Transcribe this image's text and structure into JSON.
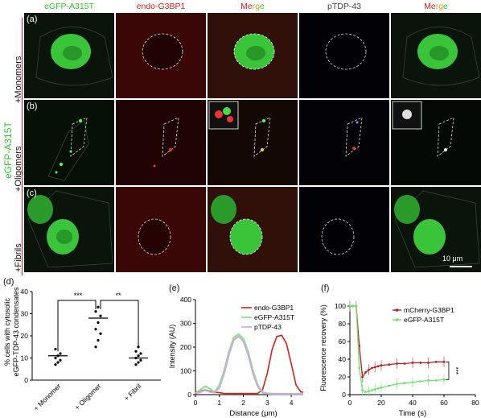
{
  "figure": {
    "column_headers": {
      "col1": "eGFP-A315T",
      "col2": "endo-G3BP1",
      "col3_a": "Me",
      "col3_b": "rg",
      "col3_c": "e",
      "col4": "pTDP-43",
      "col5_a": "Me",
      "col5_b": "rg",
      "col5_c": "e"
    },
    "side_label": "eGFP-A315T",
    "rows": [
      {
        "letter": "(a)",
        "label": "+Monomers"
      },
      {
        "letter": "(b)",
        "label": "+Oligomers"
      },
      {
        "letter": "(c)",
        "label": "+Fibrils"
      }
    ],
    "scale_bar": "10 μm",
    "colors": {
      "green": "#35c435",
      "red": "#d62020",
      "dark_red": "#2a0505",
      "dark_green": "#061206"
    }
  },
  "panel_d": {
    "letter": "(d)",
    "chart_data": {
      "type": "scatter",
      "categories": [
        "+ Monomer",
        "+ Oligomer",
        "+ Fibril"
      ],
      "ylabel_line1": "% cells with cytosolic",
      "ylabel_line2": "eGFP-TDP-43 condensates",
      "ylim": [
        0,
        40
      ],
      "yticks": [
        "0",
        "10",
        "20",
        "30",
        "40"
      ],
      "points": [
        {
          "cat": 0,
          "values": [
            7,
            8,
            9,
            10,
            11,
            12,
            14
          ]
        },
        {
          "cat": 1,
          "values": [
            15,
            18,
            21,
            23,
            26,
            29,
            31,
            33
          ]
        },
        {
          "cat": 2,
          "values": [
            7,
            8,
            9,
            10,
            11,
            12,
            13,
            15
          ]
        }
      ],
      "means": [
        11,
        28,
        10
      ],
      "significance": [
        "***",
        "**"
      ]
    }
  },
  "panel_e": {
    "letter": "(e)",
    "chart_data": {
      "type": "line",
      "xlabel": "Distance (μm)",
      "ylabel": "Intensity (AU)",
      "xlim": [
        0,
        4.5
      ],
      "ylim": [
        0,
        400
      ],
      "xticks": [
        "0",
        "1",
        "2",
        "3",
        "4"
      ],
      "yticks": [
        "0",
        "100",
        "200",
        "300",
        "400"
      ],
      "series": [
        {
          "name": "endo-G3BP1",
          "color": "#d62020",
          "x": [
            0,
            0.2,
            0.4,
            0.6,
            0.8,
            1.0,
            1.2,
            1.4,
            1.6,
            1.8,
            2.0,
            2.2,
            2.4,
            2.6,
            2.8,
            3.0,
            3.2,
            3.4,
            3.6,
            3.8,
            4.0,
            4.2,
            4.4,
            4.5
          ],
          "y": [
            10,
            15,
            20,
            15,
            10,
            8,
            5,
            5,
            5,
            5,
            5,
            5,
            5,
            5,
            20,
            90,
            190,
            245,
            250,
            215,
            130,
            40,
            12,
            10
          ]
        },
        {
          "name": "eGFP-A315T",
          "color": "#7ee07e",
          "x": [
            0,
            0.2,
            0.4,
            0.6,
            0.8,
            1.0,
            1.2,
            1.4,
            1.6,
            1.8,
            2.0,
            2.2,
            2.4,
            2.6,
            2.8,
            3.0,
            3.2,
            3.4,
            3.6,
            3.8,
            4.0,
            4.2,
            4.4,
            4.5
          ],
          "y": [
            5,
            20,
            35,
            25,
            10,
            40,
            100,
            180,
            240,
            255,
            235,
            180,
            100,
            40,
            10,
            5,
            3,
            3,
            3,
            3,
            3,
            3,
            3,
            3
          ]
        },
        {
          "name": "pTDP-43",
          "color": "#c8a8d8",
          "x": [
            0,
            0.2,
            0.4,
            0.6,
            0.8,
            1.0,
            1.2,
            1.4,
            1.6,
            1.8,
            2.0,
            2.2,
            2.4,
            2.6,
            2.8,
            3.0,
            3.2,
            3.4,
            3.6,
            3.8,
            4.0,
            4.2,
            4.4,
            4.5
          ],
          "y": [
            5,
            10,
            20,
            12,
            8,
            30,
            90,
            170,
            230,
            245,
            225,
            170,
            90,
            35,
            8,
            4,
            3,
            3,
            3,
            3,
            3,
            3,
            3,
            3
          ]
        }
      ]
    }
  },
  "panel_f": {
    "letter": "(f)",
    "chart_data": {
      "type": "line",
      "xlabel": "Time (s)",
      "ylabel": "Fluorescence recovery (%)",
      "xlim": [
        0,
        80
      ],
      "ylim": [
        0,
        100
      ],
      "xticks": [
        "0",
        "20",
        "40",
        "60",
        "80"
      ],
      "yticks": [
        "0",
        "20",
        "40",
        "60",
        "80",
        "100"
      ],
      "significance": "***",
      "series": [
        {
          "name": "mCherry-G3BP1",
          "color": "#b82020",
          "x": [
            0,
            2,
            4,
            6,
            8,
            10,
            12,
            14,
            16,
            18,
            20,
            25,
            30,
            35,
            40,
            45,
            50,
            55,
            60
          ],
          "y": [
            100,
            100,
            100,
            55,
            20,
            25,
            28,
            30,
            31,
            32,
            33,
            34,
            35,
            35,
            36,
            36,
            36,
            37,
            37
          ]
        },
        {
          "name": "eGFP-A315T",
          "color": "#70e070",
          "x": [
            0,
            2,
            4,
            6,
            8,
            10,
            12,
            14,
            16,
            18,
            20,
            25,
            30,
            35,
            40,
            45,
            50,
            55,
            60
          ],
          "y": [
            100,
            100,
            100,
            30,
            5,
            3,
            4,
            5,
            6,
            7,
            8,
            10,
            12,
            13,
            14,
            15,
            16,
            16,
            17
          ]
        }
      ]
    }
  }
}
